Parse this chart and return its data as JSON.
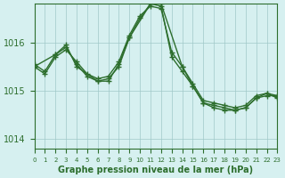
{
  "title": "Graphe pression niveau de la mer (hPa)",
  "background_color": "#d6f0f0",
  "line_color": "#2d6e2d",
  "grid_color": "#a0c8c8",
  "xlim": [
    0,
    23
  ],
  "ylim": [
    1013.8,
    1016.8
  ],
  "yticks": [
    1014,
    1015,
    1016
  ],
  "xtick_labels": [
    "0",
    "1",
    "2",
    "3",
    "4",
    "5",
    "6",
    "7",
    "8",
    "9",
    "10",
    "11",
    "12",
    "13",
    "14",
    "15",
    "16",
    "17",
    "18",
    "19",
    "20",
    "21",
    "22",
    "23"
  ],
  "series": [
    {
      "x": [
        0,
        1,
        2,
        3,
        4,
        5,
        6,
        7,
        8,
        9,
        10,
        11,
        12,
        13,
        14,
        15,
        16,
        17,
        18,
        19,
        20,
        21,
        22,
        23
      ],
      "y": [
        1015.5,
        1015.35,
        1015.7,
        1015.85,
        1015.6,
        1015.35,
        1015.25,
        1015.3,
        1015.6,
        1016.15,
        1016.55,
        1016.75,
        1016.7,
        1015.8,
        1015.5,
        1015.15,
        1014.8,
        1014.75,
        1014.7,
        1014.65,
        1014.7,
        1014.9,
        1014.95,
        1014.9
      ]
    },
    {
      "x": [
        0,
        1,
        2,
        3,
        4,
        5,
        6,
        7,
        8,
        9,
        10,
        11,
        12,
        13,
        14,
        15,
        16,
        17,
        18,
        19,
        20,
        21,
        22,
        23
      ],
      "y": [
        1015.55,
        1015.4,
        1015.75,
        1015.9,
        1015.55,
        1015.3,
        1015.2,
        1015.25,
        1015.5,
        1016.1,
        1016.5,
        1016.8,
        1016.75,
        1015.7,
        1015.4,
        1015.1,
        1014.75,
        1014.65,
        1014.6,
        1014.6,
        1014.65,
        1014.85,
        1014.95,
        1014.85
      ]
    },
    {
      "x": [
        0,
        2,
        3,
        4,
        6,
        7,
        8,
        9,
        11,
        12,
        14,
        15,
        16,
        17,
        18,
        19,
        20,
        21,
        22,
        23
      ],
      "y": [
        1015.5,
        1015.75,
        1015.95,
        1015.5,
        1015.2,
        1015.2,
        1015.55,
        1016.1,
        1016.8,
        1016.8,
        1015.5,
        1015.1,
        1014.75,
        1014.7,
        1014.65,
        1014.6,
        1014.65,
        1014.85,
        1014.9,
        1014.9
      ]
    }
  ],
  "marker": "+",
  "markersize": 5,
  "linewidth": 1.0
}
